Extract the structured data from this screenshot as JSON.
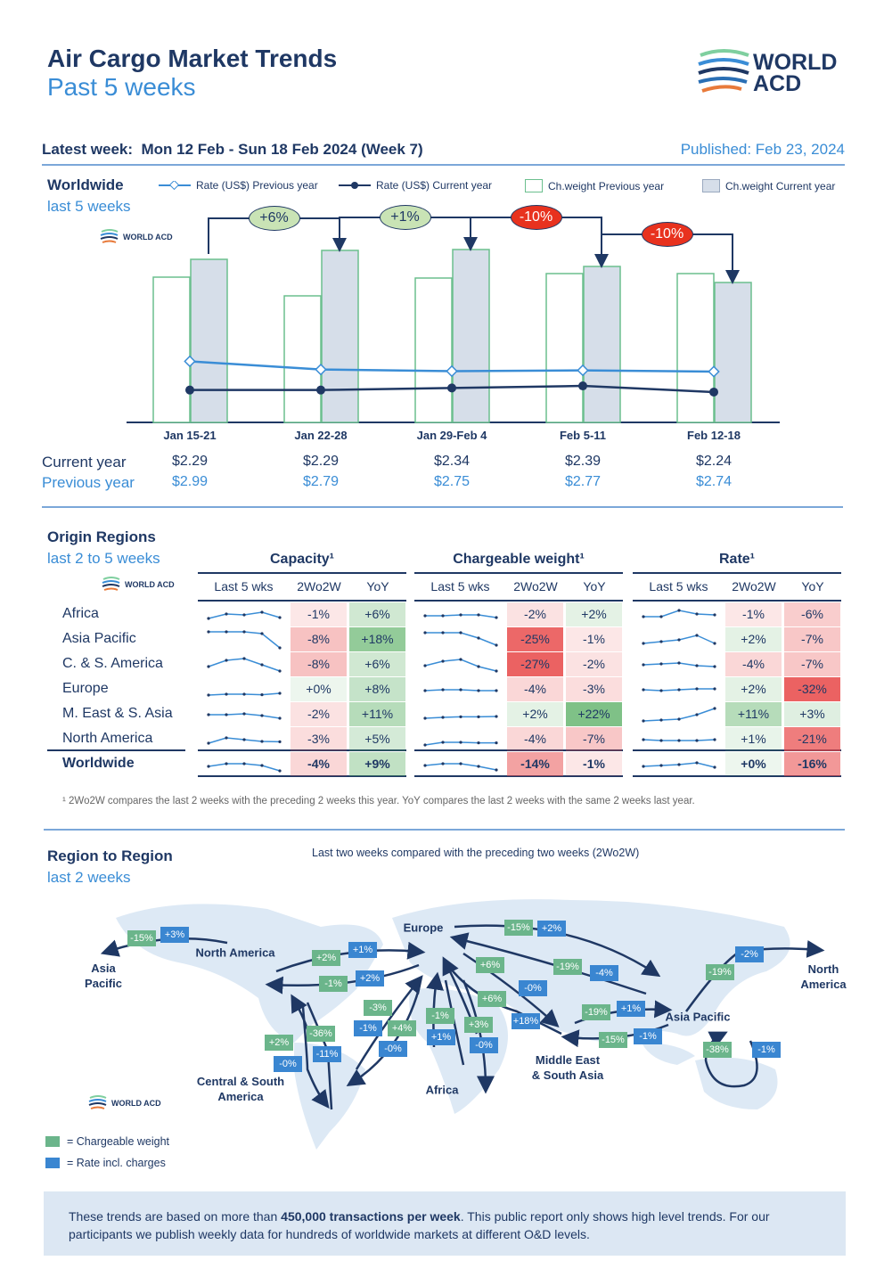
{
  "header": {
    "title": "Air Cargo Market Trends",
    "subtitle": "Past 5 weeks",
    "logo": "WORLD ACD",
    "latest_week_label": "Latest week:",
    "latest_week": "Mon 12 Feb - Sun 18 Feb 2024 (Week 7)",
    "published": "Published: Feb 23, 2024"
  },
  "worldwide": {
    "title": "Worldwide",
    "subtitle": "last 5 weeks",
    "legend": [
      "Rate (US$) Previous year",
      "Rate (US$) Current year",
      "Ch.weight Previous year",
      "Ch.weight Current year"
    ],
    "callouts": [
      {
        "label": "+6%",
        "tone": "up"
      },
      {
        "label": "+1%",
        "tone": "up"
      },
      {
        "label": "-10%",
        "tone": "down"
      },
      {
        "label": "-10%",
        "tone": "down"
      }
    ],
    "row_labels": {
      "current": "Current year",
      "previous": "Previous year"
    },
    "colors": {
      "prev_bar_border": "#6bbf8e",
      "cur_bar_fill": "#d6dee9",
      "prev_line": "#3a8dd6",
      "cur_line": "#1f3864",
      "up": "#c9e3b5",
      "down": "#e8321e"
    }
  },
  "chart_data": {
    "type": "bar+line",
    "title": "Worldwide",
    "categories": [
      "Jan 15-21",
      "Jan 22-28",
      "Jan 29-Feb 4",
      "Feb 5-11",
      "Feb 12-18"
    ],
    "series": [
      {
        "name": "Ch.weight Previous year",
        "kind": "bar",
        "values": [
          163,
          142,
          162,
          167,
          167
        ]
      },
      {
        "name": "Ch.weight Current year",
        "kind": "bar",
        "values": [
          183,
          193,
          194,
          175,
          157
        ]
      },
      {
        "name": "Rate (US$) Previous year",
        "kind": "line",
        "values": [
          2.99,
          2.79,
          2.75,
          2.77,
          2.74
        ],
        "display": [
          "$2.99",
          "$2.79",
          "$2.75",
          "$2.77",
          "$2.74"
        ]
      },
      {
        "name": "Rate (US$) Current year",
        "kind": "line",
        "values": [
          2.29,
          2.29,
          2.34,
          2.39,
          2.24
        ],
        "display": [
          "$2.29",
          "$2.29",
          "$2.34",
          "$2.39",
          "$2.24"
        ]
      }
    ],
    "ylim_rate": [
      1.5,
      4.5
    ],
    "legend": "top"
  },
  "origin": {
    "title": "Origin Regions",
    "subtitle": "last 2 to 5 weeks",
    "groups": [
      "Capacity¹",
      "Chargeable weight¹",
      "Rate¹"
    ],
    "subheaders": [
      "Last 5 wks",
      "2Wo2W",
      "YoY"
    ],
    "rows": [
      {
        "name": "Africa",
        "cap": [
          "-1%",
          "+6%"
        ],
        "cw": [
          "-2%",
          "+2%"
        ],
        "rate": [
          "-1%",
          "-6%"
        ],
        "sp": [
          [
            0.3,
            0.55,
            0.5,
            0.65,
            0.35
          ],
          [
            0.45,
            0.45,
            0.5,
            0.5,
            0.35
          ],
          [
            0.4,
            0.4,
            0.75,
            0.55,
            0.5
          ]
        ]
      },
      {
        "name": "Asia Pacific",
        "cap": [
          "-8%",
          "+18%"
        ],
        "cw": [
          "-25%",
          "-1%"
        ],
        "rate": [
          "+2%",
          "-7%"
        ],
        "sp": [
          [
            0.95,
            0.95,
            0.95,
            0.85,
            0.05
          ],
          [
            0.9,
            0.9,
            0.9,
            0.6,
            0.2
          ],
          [
            0.3,
            0.4,
            0.5,
            0.75,
            0.3
          ]
        ]
      },
      {
        "name": "C. & S. America",
        "cap": [
          "-8%",
          "+6%"
        ],
        "cw": [
          "-27%",
          "-2%"
        ],
        "rate": [
          "-4%",
          "-7%"
        ],
        "sp": [
          [
            0.4,
            0.75,
            0.85,
            0.5,
            0.15
          ],
          [
            0.45,
            0.7,
            0.8,
            0.4,
            0.15
          ],
          [
            0.5,
            0.55,
            0.6,
            0.45,
            0.4
          ]
        ]
      },
      {
        "name": "Europe",
        "cap": [
          "+0%",
          "+8%"
        ],
        "cw": [
          "-4%",
          "-3%"
        ],
        "rate": [
          "+2%",
          "-32%"
        ],
        "sp": [
          [
            0.2,
            0.25,
            0.25,
            0.22,
            0.3
          ],
          [
            0.45,
            0.5,
            0.5,
            0.45,
            0.45
          ],
          [
            0.5,
            0.45,
            0.5,
            0.55,
            0.55
          ]
        ]
      },
      {
        "name": "M. East & S. Asia",
        "cap": [
          "-2%",
          "+11%"
        ],
        "cw": [
          "+2%",
          "+22%"
        ],
        "rate": [
          "+11%",
          "+3%"
        ],
        "sp": [
          [
            0.5,
            0.5,
            0.55,
            0.45,
            0.3
          ],
          [
            0.3,
            0.35,
            0.38,
            0.38,
            0.4
          ],
          [
            0.15,
            0.2,
            0.25,
            0.5,
            0.85
          ]
        ]
      },
      {
        "name": "North America",
        "cap": [
          "-3%",
          "+5%"
        ],
        "cw": [
          "-4%",
          "-7%"
        ],
        "rate": [
          "+1%",
          "-21%"
        ],
        "sp": [
          [
            0.3,
            0.6,
            0.5,
            0.4,
            0.38
          ],
          [
            0.2,
            0.35,
            0.35,
            0.32,
            0.32
          ],
          [
            0.5,
            0.45,
            0.45,
            0.45,
            0.5
          ]
        ]
      },
      {
        "name": "Worldwide",
        "cap": [
          "-4%",
          "+9%"
        ],
        "cw": [
          "-14%",
          "-1%"
        ],
        "rate": [
          "+0%",
          "-16%"
        ],
        "sp": [
          [
            0.4,
            0.55,
            0.55,
            0.45,
            0.15
          ],
          [
            0.45,
            0.55,
            0.55,
            0.4,
            0.2
          ],
          [
            0.4,
            0.45,
            0.5,
            0.6,
            0.35
          ]
        ]
      }
    ],
    "footnote": "¹ 2Wo2W compares the last 2 weeks with the preceding 2 weeks this year. YoY compares the last 2 weeks with the same 2 weeks last year."
  },
  "r2r": {
    "title": "Region to Region",
    "subtitle": "last 2 weeks",
    "caption": "Last two weeks compared with the preceding two weeks (2Wo2W)",
    "regions": [
      "Asia\nPacific",
      "North America",
      "Europe",
      "Asia Pacific",
      "North\nAmerica",
      "Central & South\nAmerica",
      "Africa",
      "Middle East\n& South Asia"
    ],
    "green": [
      "-15%",
      "+2%",
      "-1%",
      "-3%",
      "+4%",
      "-1%",
      "+3%",
      "+6%",
      "+6%",
      "-15%",
      "-19%",
      "-19%",
      "-15%",
      "-19%",
      "-38%",
      "-36%",
      "+2%"
    ],
    "blue": [
      "+3%",
      "+1%",
      "+2%",
      "-1%",
      "-0%",
      "+1%",
      "-0%",
      "-0%",
      "+18%",
      "+2%",
      "-4%",
      "+1%",
      "-1%",
      "-2%",
      "-1%",
      "-11%",
      "-0%"
    ],
    "legend": [
      "=  Chargeable weight",
      "=  Rate incl. charges"
    ],
    "colors": {
      "green": "#6bb58b",
      "blue": "#3a86d1",
      "land": "#dde9f5",
      "arrow": "#1f3864"
    }
  },
  "footer": {
    "pre": "These trends are based on more than ",
    "bold": "450,000 transactions per week",
    "post": ". This public report only shows high level trends. For our participants we publish weekly data for hundreds of worldwide markets at different O&D levels."
  }
}
